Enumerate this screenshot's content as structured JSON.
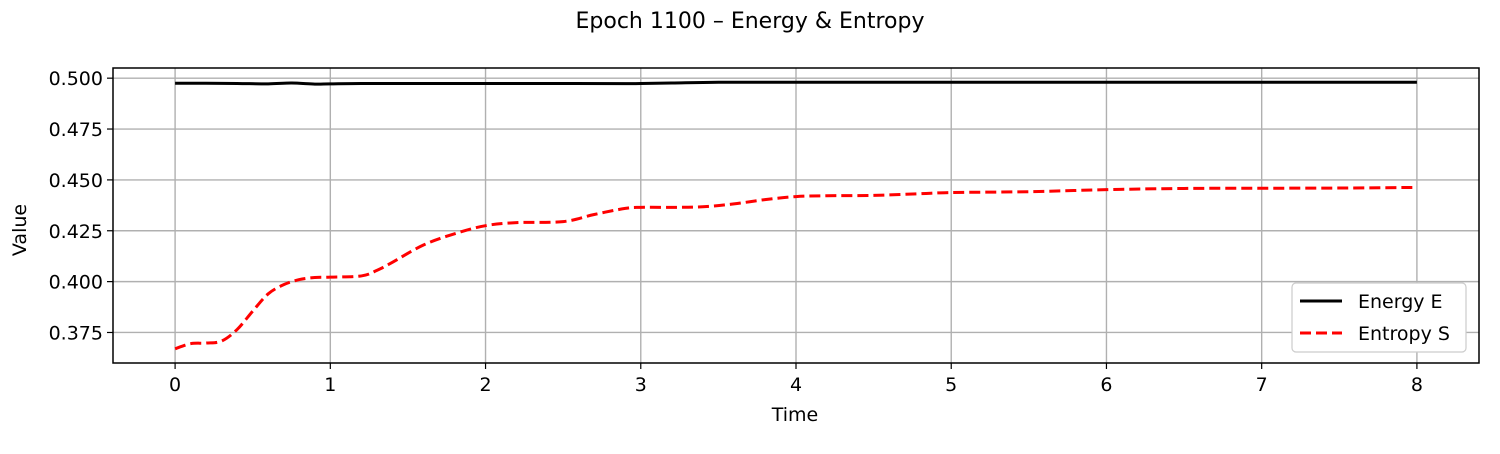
{
  "chart_data": {
    "type": "line",
    "title": "Epoch 1100 – Energy & Entropy",
    "xlabel": "Time",
    "ylabel": "Value",
    "xlim": [
      -0.4,
      8.4
    ],
    "ylim": [
      0.36,
      0.505
    ],
    "xticks": [
      0,
      1,
      2,
      3,
      4,
      5,
      6,
      7,
      8
    ],
    "xtick_labels": [
      "0",
      "1",
      "2",
      "3",
      "4",
      "5",
      "6",
      "7",
      "8"
    ],
    "yticks": [
      0.375,
      0.4,
      0.425,
      0.45,
      0.475,
      0.5
    ],
    "ytick_labels": [
      "0.375",
      "0.400",
      "0.425",
      "0.450",
      "0.475",
      "0.500"
    ],
    "grid": true,
    "legend_position": "lower-right",
    "series": [
      {
        "name": "Energy E",
        "color": "#000000",
        "dash": "solid",
        "x": [
          0.0,
          0.2,
          0.4,
          0.6,
          0.75,
          0.9,
          1.0,
          1.2,
          1.5,
          2.0,
          2.5,
          2.9,
          3.0,
          3.2,
          3.5,
          4.0,
          5.0,
          6.0,
          7.0,
          8.0
        ],
        "y": [
          0.4975,
          0.4975,
          0.4974,
          0.4972,
          0.4976,
          0.4971,
          0.4972,
          0.4974,
          0.4974,
          0.4974,
          0.4974,
          0.4973,
          0.4974,
          0.4976,
          0.498,
          0.498,
          0.498,
          0.498,
          0.498,
          0.498
        ]
      },
      {
        "name": "Entropy S",
        "color": "#ff0000",
        "dash": "dashed",
        "x": [
          0.0,
          0.1,
          0.2,
          0.3,
          0.4,
          0.5,
          0.6,
          0.7,
          0.8,
          0.9,
          1.0,
          1.2,
          1.3,
          1.4,
          1.6,
          1.8,
          2.0,
          2.2,
          2.5,
          2.7,
          2.9,
          3.0,
          3.2,
          3.4,
          3.6,
          3.8,
          4.0,
          4.2,
          4.5,
          4.8,
          5.0,
          5.5,
          6.0,
          6.5,
          7.0,
          7.5,
          8.0
        ],
        "y": [
          0.367,
          0.3695,
          0.3698,
          0.3708,
          0.3765,
          0.3855,
          0.394,
          0.3985,
          0.401,
          0.402,
          0.4022,
          0.4028,
          0.4055,
          0.4095,
          0.418,
          0.4235,
          0.4275,
          0.429,
          0.4295,
          0.433,
          0.436,
          0.4365,
          0.4365,
          0.4368,
          0.4382,
          0.4403,
          0.4418,
          0.4422,
          0.4424,
          0.4432,
          0.4438,
          0.4442,
          0.4452,
          0.4458,
          0.4459,
          0.446,
          0.4463
        ]
      }
    ]
  }
}
